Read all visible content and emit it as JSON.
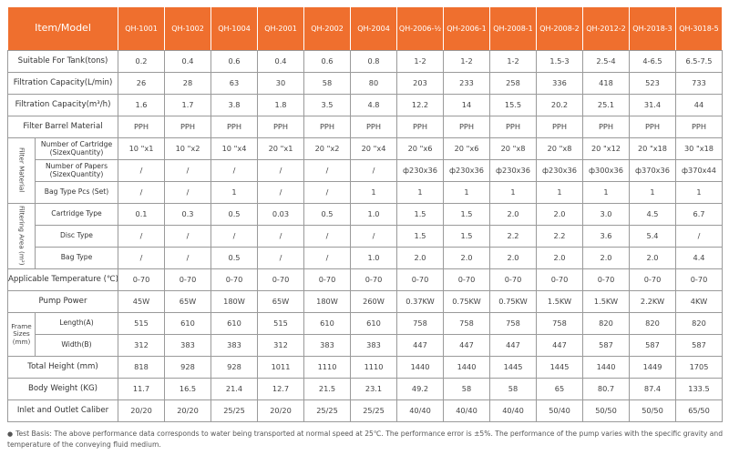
{
  "header": {
    "item_label": "Item/Model",
    "models": [
      "QH-1001",
      "QH-1002",
      "QH-1004",
      "QH-2001",
      "QH-2002",
      "QH-2004",
      "QH-2006-½",
      "QH-2006-1",
      "QH-2008-1",
      "QH-2008-2",
      "QH-2012-2",
      "QH-2018-3",
      "QH-3018-5"
    ]
  },
  "colors": {
    "header_bg": "#ef6f2e",
    "header_text": "#ffffff",
    "border": "#9a9a9a"
  },
  "rows": [
    {
      "label": "Suitable For Tank(tons)",
      "values": [
        "0.2",
        "0.4",
        "0.6",
        "0.4",
        "0.6",
        "0.8",
        "1-2",
        "1-2",
        "1-2",
        "1.5-3",
        "2.5-4",
        "4-6.5",
        "6.5-7.5"
      ]
    },
    {
      "label": "Filtration Capacity(L/min)",
      "values": [
        "26",
        "28",
        "63",
        "30",
        "58",
        "80",
        "203",
        "233",
        "258",
        "336",
        "418",
        "523",
        "733"
      ]
    },
    {
      "label": "Filtration Capacity(m³/h)",
      "values": [
        "1.6",
        "1.7",
        "3.8",
        "1.8",
        "3.5",
        "4.8",
        "12.2",
        "14",
        "15.5",
        "20.2",
        "25.1",
        "31.4",
        "44"
      ]
    },
    {
      "label": "Filter Barrel Material",
      "values": [
        "PPH",
        "PPH",
        "PPH",
        "PPH",
        "PPH",
        "PPH",
        "PPH",
        "PPH",
        "PPH",
        "PPH",
        "PPH",
        "PPH",
        "PPH"
      ]
    },
    {
      "group": "Filter Material",
      "group_vertical": true,
      "group_span": 3,
      "label": "Number of Cartridge (SizexQuantity)",
      "values": [
        "10 \"x1",
        "10 \"x2",
        "10 \"x4",
        "20 \"x1",
        "20 \"x2",
        "20 \"x4",
        "20 \"x6",
        "20 \"x6",
        "20 \"x8",
        "20 \"x8",
        "20 \"x12",
        "20 \"x18",
        "30 \"x18"
      ]
    },
    {
      "label": "Number of Papers (SizexQuantity)",
      "values": [
        "/",
        "/",
        "/",
        "/",
        "/",
        "/",
        "ф230x36",
        "ф230x36",
        "ф230x36",
        "ф230x36",
        "ф300x36",
        "ф370x36",
        "ф370x44"
      ]
    },
    {
      "label": "Bag Type Pcs (Set)",
      "values": [
        "/",
        "/",
        "1",
        "/",
        "/",
        "1",
        "1",
        "1",
        "1",
        "1",
        "1",
        "1",
        "1"
      ]
    },
    {
      "group": "Filtering Area (m²)",
      "group_vertical": true,
      "group_span": 3,
      "label": "Cartridge Type",
      "values": [
        "0.1",
        "0.3",
        "0.5",
        "0.03",
        "0.5",
        "1.0",
        "1.5",
        "1.5",
        "2.0",
        "2.0",
        "3.0",
        "4.5",
        "6.7"
      ]
    },
    {
      "label": "Disc Type",
      "values": [
        "/",
        "/",
        "/",
        "/",
        "/",
        "/",
        "1.5",
        "1.5",
        "2.2",
        "2.2",
        "3.6",
        "5.4",
        "/"
      ]
    },
    {
      "label": "Bag Type",
      "values": [
        "/",
        "/",
        "0.5",
        "/",
        "/",
        "1.0",
        "2.0",
        "2.0",
        "2.0",
        "2.0",
        "2.0",
        "2.0",
        "4.4"
      ]
    },
    {
      "label": "Applicable Temperature (℃)",
      "values": [
        "0-70",
        "0-70",
        "0-70",
        "0-70",
        "0-70",
        "0-70",
        "0-70",
        "0-70",
        "0-70",
        "0-70",
        "0-70",
        "0-70",
        "0-70"
      ]
    },
    {
      "label": "Pump Power",
      "values": [
        "45W",
        "65W",
        "180W",
        "65W",
        "180W",
        "260W",
        "0.37KW",
        "0.75KW",
        "0.75KW",
        "1.5KW",
        "1.5KW",
        "2.2KW",
        "4KW"
      ]
    },
    {
      "group": "Frame Sizes (mm)",
      "group_vertical": false,
      "group_span": 2,
      "label": "Length(A)",
      "values": [
        "515",
        "610",
        "610",
        "515",
        "610",
        "610",
        "758",
        "758",
        "758",
        "758",
        "820",
        "820",
        "820"
      ]
    },
    {
      "label": "Width(B)",
      "values": [
        "312",
        "383",
        "383",
        "312",
        "383",
        "383",
        "447",
        "447",
        "447",
        "447",
        "587",
        "587",
        "587"
      ]
    },
    {
      "label": "Total Height (mm)",
      "values": [
        "818",
        "928",
        "928",
        "1011",
        "1110",
        "1110",
        "1440",
        "1440",
        "1445",
        "1445",
        "1440",
        "1449",
        "1705"
      ]
    },
    {
      "label": "Body Weight (KG)",
      "values": [
        "11.7",
        "16.5",
        "21.4",
        "12.7",
        "21.5",
        "23.1",
        "49.2",
        "58",
        "58",
        "65",
        "80.7",
        "87.4",
        "133.5"
      ]
    },
    {
      "label": "Inlet and Outlet Caliber",
      "values": [
        "20/20",
        "20/20",
        "25/25",
        "20/20",
        "25/25",
        "25/25",
        "40/40",
        "40/40",
        "40/40",
        "50/40",
        "50/50",
        "50/50",
        "65/50"
      ]
    }
  ],
  "note": {
    "bullet": "●",
    "text": "Test Basis: The above performance data corresponds to water being transported at normal speed at 25℃. The performance error is ±5%. The performance of the pump varies with the specific gravity and temperature of the conveying fluid medium."
  }
}
